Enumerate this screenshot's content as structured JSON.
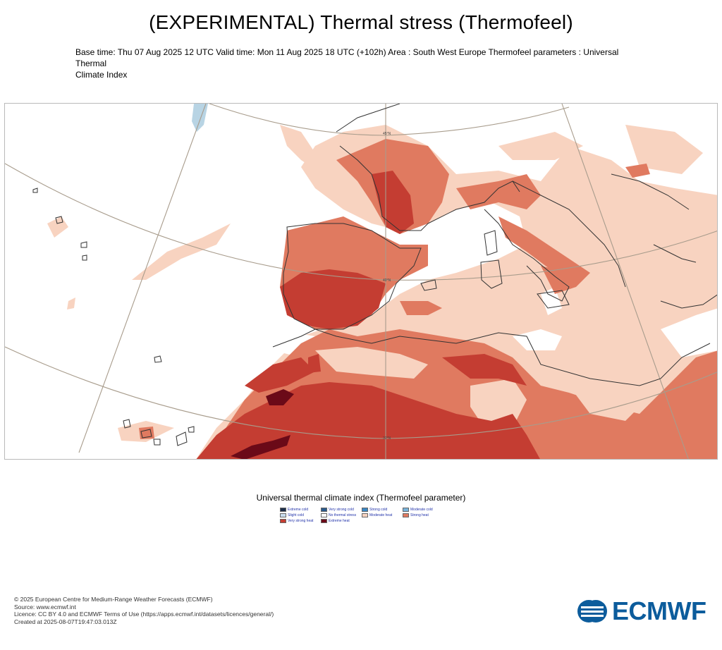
{
  "title": "(EXPERIMENTAL) Thermal stress (Thermofeel)",
  "subtitle_line1": "Base time: Thu 07 Aug 2025 12 UTC Valid time: Mon 11 Aug 2025 18 UTC (+102h) Area : South West Europe Thermofeel parameters : Universal Thermal",
  "subtitle_line2": "Climate Index",
  "map": {
    "grid_labels": [
      "45°N",
      "40°N",
      "30°N"
    ],
    "colors": {
      "background_no_stress": "#ffffff",
      "moderate_heat": "#f8d3c0",
      "strong_heat": "#e07a60",
      "very_strong_heat": "#c43d32",
      "extreme_heat": "#6b0a18",
      "water_cold": "#b8d4e4",
      "coast": "#333333",
      "graticule": "#a89c8c"
    }
  },
  "legend": {
    "title": "Universal thermal climate index (Thermofeel parameter)",
    "items": [
      {
        "label": "Extreme cold",
        "color": "#1c2e4a"
      },
      {
        "label": "Very strong cold",
        "color": "#2a5a8c"
      },
      {
        "label": "Strong cold",
        "color": "#3b88c4"
      },
      {
        "label": "Moderate cold",
        "color": "#78b4dc"
      },
      {
        "label": "Slight cold",
        "color": "#c8dcee"
      },
      {
        "label": "No thermal stress",
        "color": "#ffffff"
      },
      {
        "label": "Moderate heat",
        "color": "#f8d3c0"
      },
      {
        "label": "Strong heat",
        "color": "#e07a60"
      },
      {
        "label": "Very strong heat",
        "color": "#c43d32"
      },
      {
        "label": "Extreme heat",
        "color": "#6b0a18"
      }
    ]
  },
  "footer": {
    "line1": "© 2025 European Centre for Medium-Range Weather Forecasts (ECMWF)",
    "line2": "Source: www.ecmwf.int",
    "line3": "Licence: CC BY 4.0 and ECMWF Terms of Use (https://apps.ecmwf.int/datasets/licences/general/)",
    "line4": "Created at 2025-08-07T19:47:03.013Z"
  },
  "logo": {
    "text": "ECMWF",
    "color": "#0c5c9c"
  }
}
